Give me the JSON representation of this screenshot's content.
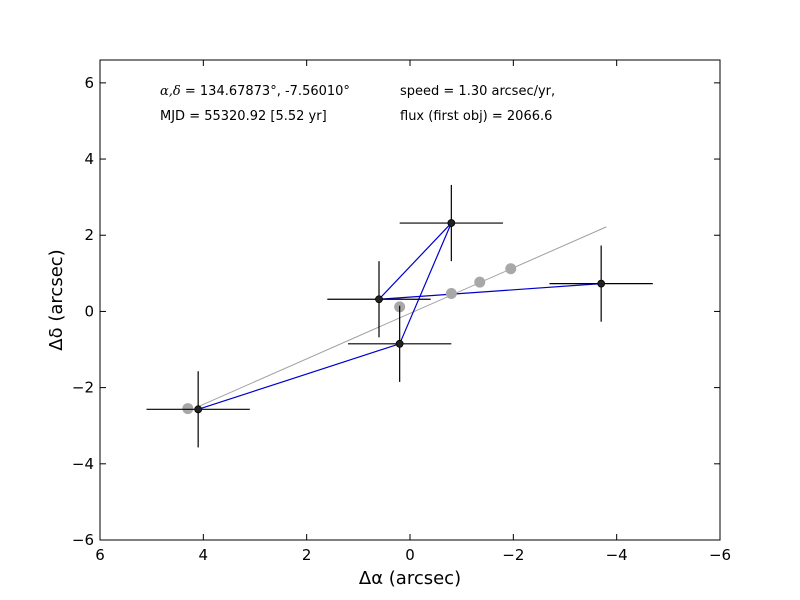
{
  "chart_data": {
    "type": "scatter",
    "xlabel": "Δα (arcsec)",
    "ylabel": "Δδ (arcsec)",
    "xlim": [
      6,
      -6
    ],
    "ylim": [
      -6,
      6.6
    ],
    "x_ticks": [
      6,
      4,
      2,
      0,
      -2,
      -4,
      -6
    ],
    "y_ticks": [
      -6,
      -4,
      -2,
      0,
      2,
      4,
      6
    ],
    "x_tick_labels": [
      "6",
      "4",
      "2",
      "0",
      "−2",
      "−4",
      "−6"
    ],
    "y_tick_labels": [
      "−6",
      "−4",
      "−2",
      "0",
      "2",
      "4",
      "6"
    ],
    "grid": false,
    "annotations": {
      "coords_symbol": "α,δ",
      "coords_value": " = 134.67873°, -7.56010°",
      "mjd": "MJD = 55320.92 [5.52 yr]",
      "speed": "speed = 1.30 arcsec/yr,",
      "flux": "flux (first obj) = 2066.6"
    },
    "fit_line": {
      "x": [
        4.1,
        -3.8
      ],
      "y": [
        -2.5,
        2.22
      ],
      "color": "#a0a0a0"
    },
    "predicted_points": {
      "color": "#a8a8a8",
      "x": [
        4.3,
        0.2,
        -0.8,
        -1.35,
        -1.95
      ],
      "y": [
        -2.55,
        0.12,
        0.47,
        0.77,
        1.12
      ]
    },
    "observed_points": {
      "color": "#000000",
      "line_color": "#0000cc",
      "x": [
        4.1,
        0.6,
        -0.8,
        0.2,
        -3.7
      ],
      "y": [
        -2.57,
        0.32,
        2.32,
        -0.85,
        0.73
      ],
      "x_err": [
        1.0,
        1.0,
        1.0,
        1.0,
        1.0
      ],
      "y_err": [
        1.0,
        1.0,
        1.0,
        1.0,
        1.0
      ],
      "path_order": [
        0,
        3,
        2,
        1,
        4
      ]
    }
  }
}
